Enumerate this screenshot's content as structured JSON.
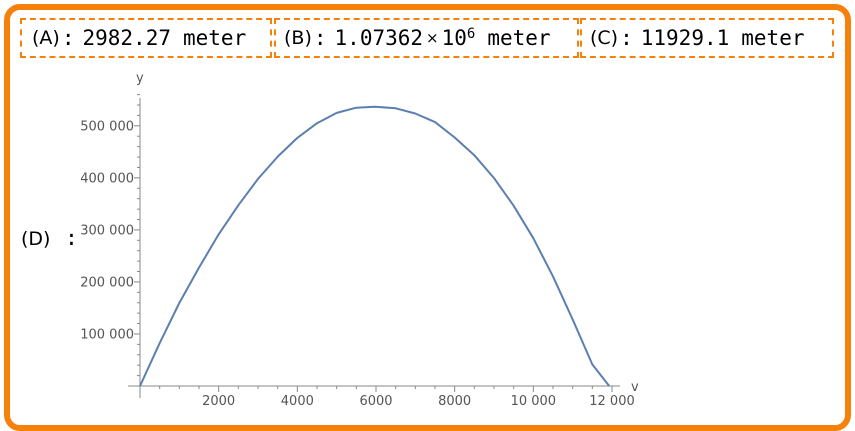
{
  "results": {
    "a": {
      "label": "(A)",
      "sep": ":",
      "value": "2982.27",
      "unit": "meter"
    },
    "b": {
      "label": "(B)",
      "sep": ":",
      "mantissa": "1.07362",
      "times": "×",
      "base": "10",
      "exponent": "6",
      "unit": "meter"
    },
    "c": {
      "label": "(C)",
      "sep": ":",
      "value": "11929.1",
      "unit": "meter"
    },
    "d": {
      "label": "(D)",
      "sep": ":"
    }
  },
  "colors": {
    "accent": "#F5800A",
    "curve": "#5B7FB0",
    "axis": "#888888"
  },
  "chart_data": {
    "type": "line",
    "xlabel": "v",
    "ylabel": "y",
    "xlim": [
      0,
      12000
    ],
    "ylim": [
      0,
      580000
    ],
    "x_ticks": [
      2000,
      4000,
      6000,
      8000,
      10000,
      12000
    ],
    "x_tick_labels": [
      "2000",
      "4000",
      "6000",
      "8000",
      "10 000",
      "12 000"
    ],
    "y_ticks": [
      100000,
      200000,
      300000,
      400000,
      500000
    ],
    "y_tick_labels": [
      "100 000",
      "200 000",
      "300 000",
      "400 000",
      "500 000"
    ],
    "series": [
      {
        "x": [
          0,
          500,
          1000,
          1500,
          2000,
          2500,
          3000,
          3500,
          4000,
          4500,
          5000,
          5500,
          5964.5,
          6500,
          7000,
          7500,
          8000,
          8500,
          9000,
          9500,
          10000,
          10500,
          11000,
          11500,
          11929.1
        ],
        "values": [
          0,
          82400,
          159600,
          227600,
          291500,
          347300,
          398000,
          440900,
          476800,
          505000,
          524800,
          534900,
          536800,
          533600,
          523700,
          507200,
          477500,
          443500,
          399500,
          346400,
          284000,
          210600,
          127700,
          41500,
          0
        ]
      }
    ],
    "grid": false
  }
}
